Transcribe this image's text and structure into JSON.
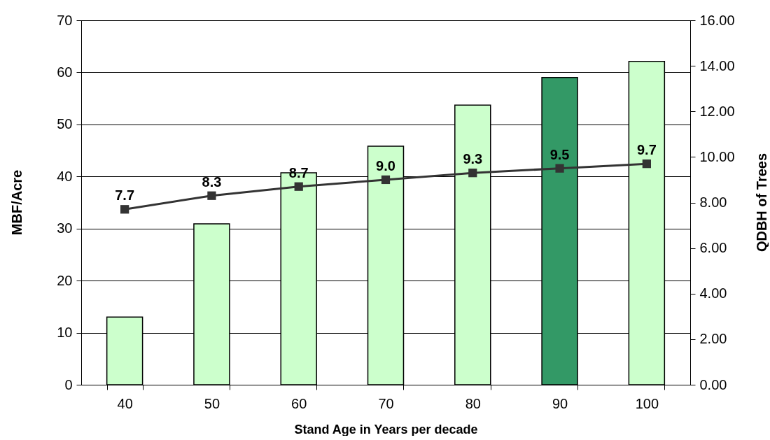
{
  "chart_data": {
    "type": "bar",
    "xlabel": "Stand Age in Years per decade",
    "ylabel": "MBF/Acre",
    "y2label": "QDBH of Trees",
    "categories": [
      "40",
      "50",
      "60",
      "70",
      "80",
      "90",
      "100"
    ],
    "series": [
      {
        "type": "bar",
        "colors": [
          "#ccffcc",
          "#ccffcc",
          "#ccffcc",
          "#ccffcc",
          "#ccffcc",
          "#339966",
          "#ccffcc"
        ],
        "values": [
          13,
          30.9,
          40.7,
          45.8,
          53.7,
          59.0,
          62.1
        ]
      },
      {
        "type": "line",
        "axis": "y2",
        "color": "#333333",
        "marker": "square",
        "values": [
          7.7,
          8.3,
          8.7,
          9.0,
          9.3,
          9.5,
          9.7
        ],
        "value_labels": [
          "7.7",
          "8.3",
          "8.7",
          "9.0",
          "9.3",
          "9.5",
          "9.7"
        ]
      }
    ],
    "ylim": [
      0,
      70
    ],
    "yticks": [
      0,
      10,
      20,
      30,
      40,
      50,
      60,
      70
    ],
    "y2lim": [
      0,
      16
    ],
    "y2ticks": [
      {
        "value": 0,
        "label": "0.00"
      },
      {
        "value": 2,
        "label": "2.00"
      },
      {
        "value": 4,
        "label": "4.00"
      },
      {
        "value": 6,
        "label": "6.00"
      },
      {
        "value": 8,
        "label": "8.00"
      },
      {
        "value": 10,
        "label": "10.00"
      },
      {
        "value": 12,
        "label": "12.00"
      },
      {
        "value": 14,
        "label": "14.00"
      },
      {
        "value": 16,
        "label": "16.00"
      }
    ],
    "grid": "y",
    "legend": false
  }
}
